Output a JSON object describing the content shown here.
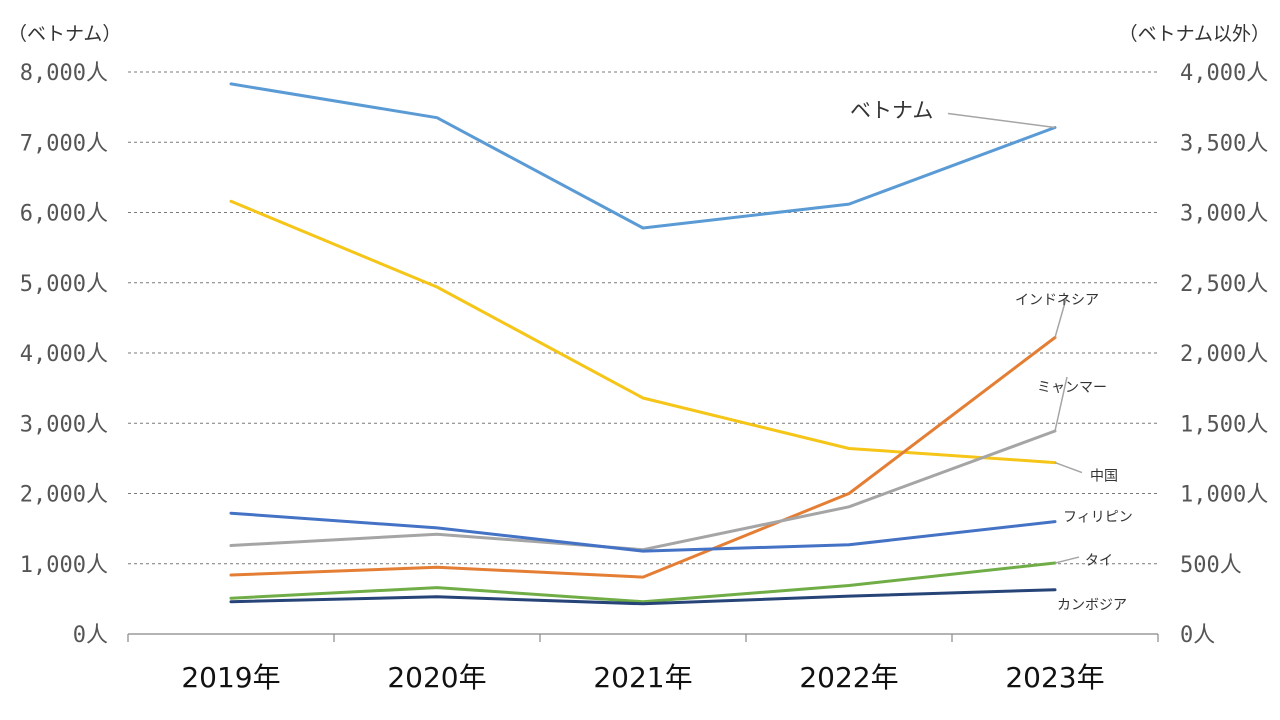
{
  "chart_data": {
    "type": "line",
    "categories": [
      "2019年",
      "2020年",
      "2021年",
      "2022年",
      "2023年"
    ],
    "left_axis": {
      "unit_label": "（ベトナム）",
      "ylim": [
        0,
        8000
      ],
      "ticks": [
        "0人",
        "1,000人",
        "2,000人",
        "3,000人",
        "4,000人",
        "5,000人",
        "6,000人",
        "7,000人",
        "8,000人"
      ]
    },
    "right_axis": {
      "unit_label": "（ベトナム以外）",
      "ylim": [
        0,
        4000
      ],
      "ticks": [
        "0人",
        "500人",
        "1,000人",
        "1,500人",
        "2,000人",
        "2,500人",
        "3,000人",
        "3,500人",
        "4,000人"
      ]
    },
    "grid": "horizontal dashed",
    "series": [
      {
        "name": "ベトナム",
        "axis": "left",
        "color": "#5b9bd5",
        "values": [
          7830,
          7350,
          5780,
          6120,
          7210
        ]
      },
      {
        "name": "中国",
        "axis": "right",
        "color": "#f5c518",
        "values": [
          3080,
          2470,
          1680,
          1320,
          1220
        ]
      },
      {
        "name": "インドネシア",
        "axis": "right",
        "color": "#e57e35",
        "values": [
          420,
          475,
          405,
          1000,
          2110
        ]
      },
      {
        "name": "ミャンマー",
        "axis": "right",
        "color": "#a5a5a5",
        "values": [
          630,
          710,
          600,
          905,
          1445
        ]
      },
      {
        "name": "フィリピン",
        "axis": "right",
        "color": "#4472c4",
        "values": [
          860,
          755,
          590,
          635,
          800
        ]
      },
      {
        "name": "タイ",
        "axis": "right",
        "color": "#70ad47",
        "values": [
          255,
          330,
          230,
          345,
          505
        ]
      },
      {
        "name": "カンボジア",
        "axis": "right",
        "color": "#264478",
        "values": [
          230,
          265,
          215,
          270,
          315
        ]
      }
    ]
  }
}
